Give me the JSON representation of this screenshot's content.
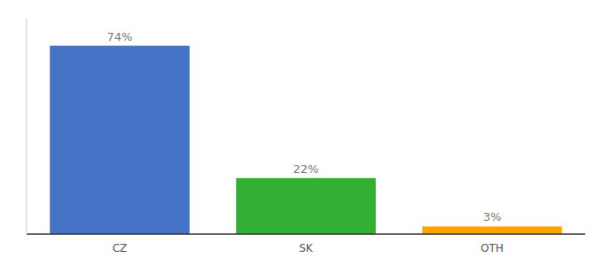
{
  "chart_data": {
    "type": "bar",
    "categories": [
      "CZ",
      "SK",
      "OTH"
    ],
    "values": [
      74,
      22,
      3
    ],
    "value_labels": [
      "74%",
      "22%",
      "3%"
    ],
    "colors": [
      "#4472c4",
      "#33b033",
      "#ffa500"
    ],
    "ylim": [
      0,
      85
    ],
    "data_labels": true,
    "tick_labels": "x",
    "grid": false
  }
}
